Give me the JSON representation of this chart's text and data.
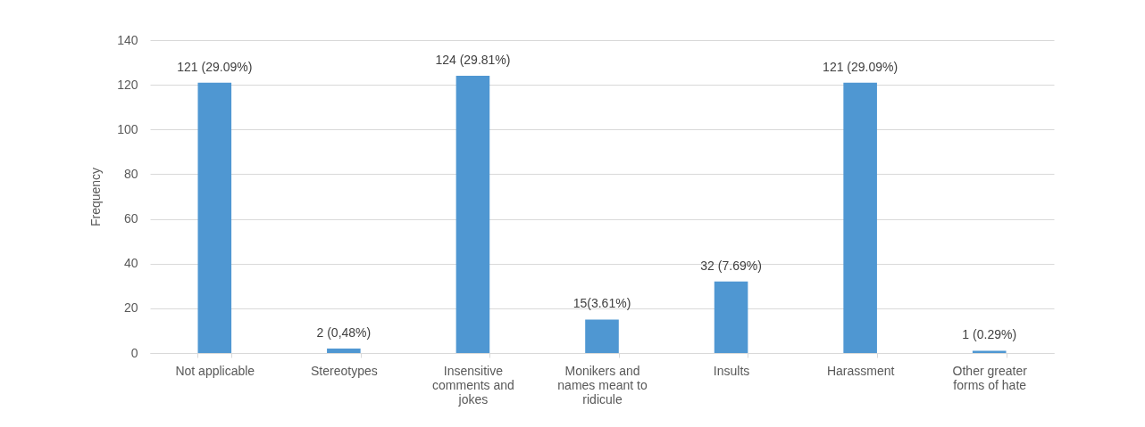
{
  "chart_data": {
    "type": "bar",
    "ylabel": "Frequency",
    "categories": [
      "Not applicable",
      "Stereotypes",
      "Insensitive comments and jokes",
      "Monikers and names meant to ridicule",
      "Insults",
      "Harassment",
      "Other greater forms of hate"
    ],
    "values": [
      121,
      2,
      124,
      15,
      32,
      121,
      1
    ],
    "value_labels": [
      "121 (29.09%)",
      "2 (0,48%)",
      "124 (29.81%)",
      "15(3.61%)",
      "32 (7.69%)",
      "121 (29.09%)",
      "1 (0.29%)"
    ],
    "color": "#4f97d2",
    "ylim": [
      0,
      140
    ],
    "yticks": [
      0,
      20,
      40,
      60,
      80,
      100,
      120,
      140
    ],
    "grid": "y"
  }
}
